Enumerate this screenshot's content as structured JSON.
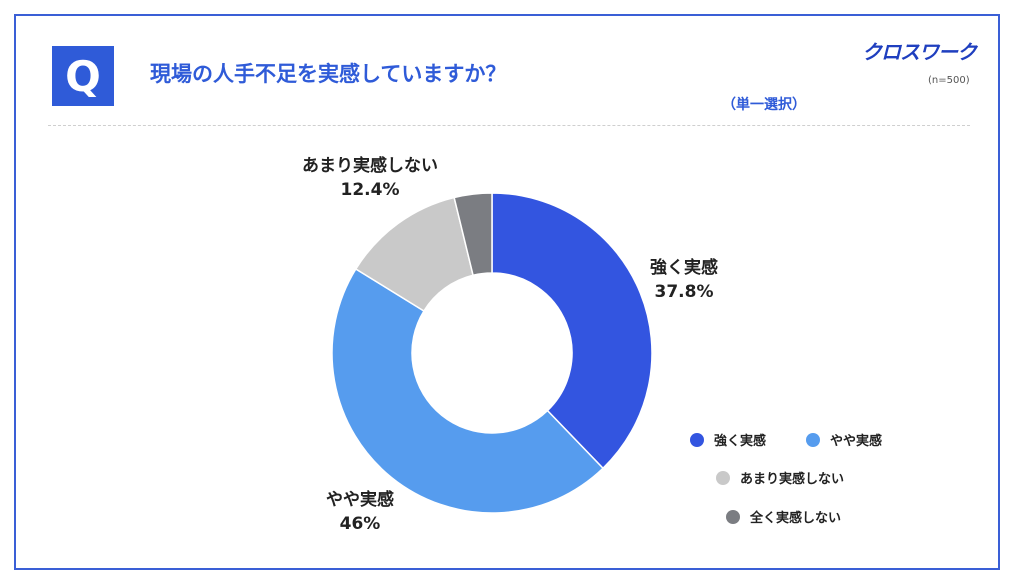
{
  "header": {
    "q_badge": "Q",
    "question": "現場の人手不足を実感していますか？",
    "logo": "クロスワーク",
    "sample_size": "(n=500)",
    "selection_type": "（単一選択）"
  },
  "chart_data": {
    "type": "pie",
    "donut": true,
    "title": "現場の人手不足を実感していますか？",
    "legend_position": "bottom-right",
    "slices": [
      {
        "name": "強く実感",
        "value": 37.8,
        "label": "37.8%",
        "color": "#3355e0"
      },
      {
        "name": "やや実感",
        "value": 46,
        "label": "46%",
        "color": "#569cee"
      },
      {
        "name": "あまり実感しない",
        "value": 12.4,
        "label": "12.4%",
        "color": "#c9c9c9"
      },
      {
        "name": "全く実感しない",
        "value": 3.8,
        "label": "",
        "color": "#7b7d82"
      }
    ]
  }
}
